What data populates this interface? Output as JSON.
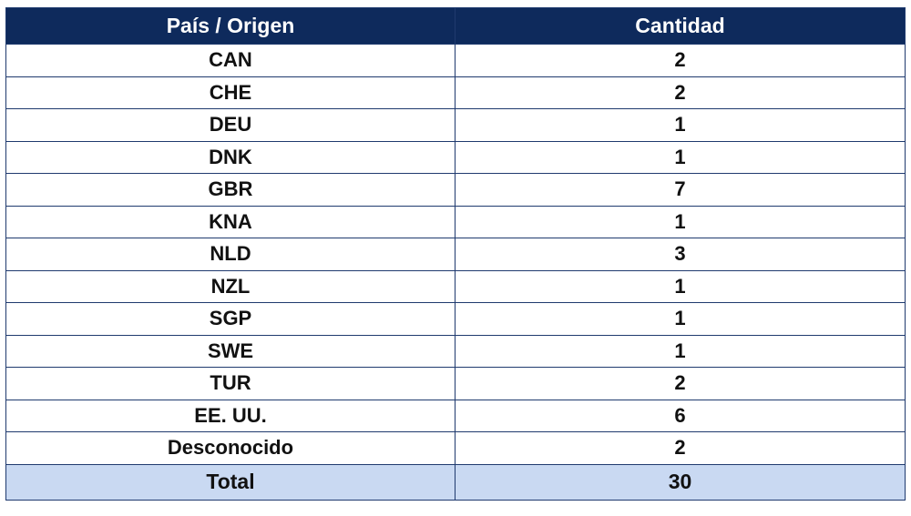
{
  "table": {
    "headers": [
      "País / Origen",
      "Cantidad"
    ],
    "rows": [
      {
        "country": "CAN",
        "count": "2"
      },
      {
        "country": "CHE",
        "count": "2"
      },
      {
        "country": "DEU",
        "count": "1"
      },
      {
        "country": "DNK",
        "count": "1"
      },
      {
        "country": "GBR",
        "count": "7"
      },
      {
        "country": "KNA",
        "count": "1"
      },
      {
        "country": "NLD",
        "count": "3"
      },
      {
        "country": "NZL",
        "count": "1"
      },
      {
        "country": "SGP",
        "count": "1"
      },
      {
        "country": "SWE",
        "count": "1"
      },
      {
        "country": "TUR",
        "count": "2"
      },
      {
        "country": "EE. UU.",
        "count": "6"
      },
      {
        "country": "Desconocido",
        "count": "2"
      }
    ],
    "total": {
      "label": "Total",
      "count": "30"
    }
  },
  "colors": {
    "header_bg": "#0e2a5c",
    "header_text": "#ffffff",
    "total_bg": "#c9d9f2",
    "border": "#1f3a6e"
  }
}
